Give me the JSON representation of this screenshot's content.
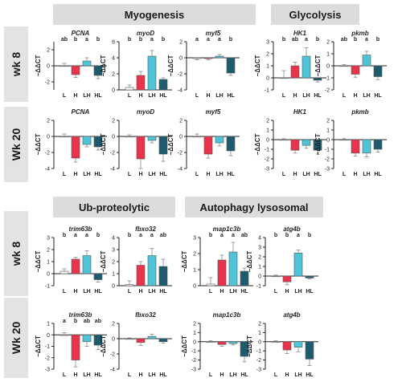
{
  "sections": [
    {
      "title": "Myogenesis"
    },
    {
      "title": "Glycolysis"
    },
    {
      "title": "Ub-proteolytic"
    },
    {
      "title": "Autophagy lysosomal"
    }
  ],
  "row_labels": [
    "wk 8",
    "Wk 20",
    "wk 8",
    "Wk 20"
  ],
  "colors": {
    "L": "#ffffff",
    "H": "#e8334a",
    "LH": "#4fc3d8",
    "HL": "#1e5b6e",
    "header_bg": "#dcdcdc"
  },
  "chart_data": [
    {
      "type": "bar",
      "gene": "PCNA",
      "row": "wk 8",
      "categories": [
        "L",
        "H",
        "LH",
        "HL"
      ],
      "values": [
        0,
        -1.1,
        0.6,
        -1.2
      ],
      "errors": [
        0.3,
        0.35,
        0.4,
        0.4
      ],
      "significance": [
        "ab",
        "b",
        "a",
        "b"
      ],
      "ylim": [
        -3,
        3
      ],
      "yticks": [
        -2,
        0,
        2
      ],
      "ylabel": "−ΔΔCT"
    },
    {
      "type": "bar",
      "gene": "myoD",
      "row": "wk 8",
      "categories": [
        "L",
        "H",
        "LH",
        "HL"
      ],
      "values": [
        0.3,
        1.8,
        4.2,
        1.3
      ],
      "errors": [
        0.3,
        0.5,
        0.7,
        0.2
      ],
      "significance": [
        "b",
        "b",
        "a",
        "b"
      ],
      "ylim": [
        0,
        6
      ],
      "yticks": [
        0,
        2,
        4,
        6
      ],
      "ylabel": "−ΔΔCT"
    },
    {
      "type": "bar",
      "gene": "myf5",
      "row": "wk 8",
      "categories": [
        "L",
        "H",
        "LH",
        "HL"
      ],
      "values": [
        -0.1,
        -0.1,
        0.2,
        -1.9
      ],
      "errors": [
        0.15,
        0.15,
        0.2,
        0.3
      ],
      "significance": [
        "a",
        "a",
        "a",
        "b"
      ],
      "ylim": [
        -4,
        2
      ],
      "yticks": [
        -4,
        -2,
        0,
        2
      ],
      "ylabel": "−ΔΔCT"
    },
    {
      "type": "bar",
      "gene": "HK1",
      "row": "wk 8",
      "categories": [
        "L",
        "H",
        "LH",
        "HL"
      ],
      "values": [
        0,
        1,
        1.8,
        -0.2
      ],
      "errors": [
        0.6,
        0.3,
        0.7,
        0.15
      ],
      "significance": [
        "b",
        "ab",
        "a",
        "b"
      ],
      "ylim": [
        -1,
        3
      ],
      "yticks": [
        -1,
        0,
        1,
        2,
        3
      ],
      "ylabel": "−ΔΔCT"
    },
    {
      "type": "bar",
      "gene": "pkmb",
      "row": "wk 8",
      "categories": [
        "L",
        "H",
        "LH",
        "HL"
      ],
      "values": [
        0,
        -0.7,
        0.9,
        -0.9
      ],
      "errors": [
        0.1,
        0.25,
        0.3,
        0.25
      ],
      "significance": [
        "ab",
        "b",
        "a",
        "b"
      ],
      "ylim": [
        -2,
        2
      ],
      "yticks": [
        -2,
        -1,
        0,
        1,
        2
      ],
      "ylabel": "−ΔΔCT"
    },
    {
      "type": "bar",
      "gene": "PCNA",
      "row": "Wk 20",
      "categories": [
        "L",
        "H",
        "LH",
        "HL"
      ],
      "values": [
        0,
        -2.7,
        -1,
        -1.3
      ],
      "errors": [
        0.3,
        0.5,
        0.3,
        0.4
      ],
      "significance": [],
      "ylim": [
        -4,
        2
      ],
      "yticks": [
        -4,
        -2,
        0,
        2
      ],
      "ylabel": "−ΔΔCT"
    },
    {
      "type": "bar",
      "gene": "myoD",
      "row": "Wk 20",
      "categories": [
        "L",
        "H",
        "LH",
        "HL"
      ],
      "values": [
        0,
        -2.8,
        -0.5,
        -2.2
      ],
      "errors": [
        0.2,
        1.2,
        0.3,
        0.9
      ],
      "significance": [],
      "ylim": [
        -4,
        2
      ],
      "yticks": [
        -4,
        -2,
        0,
        2
      ],
      "ylabel": "−ΔΔCT"
    },
    {
      "type": "bar",
      "gene": "myf5",
      "row": "Wk 20",
      "categories": [
        "L",
        "H",
        "LH",
        "HL"
      ],
      "values": [
        0,
        -2.2,
        -0.8,
        -1.8
      ],
      "errors": [
        0.3,
        0.5,
        0.4,
        0.6
      ],
      "significance": [],
      "ylim": [
        -4,
        2
      ],
      "yticks": [
        -4,
        -2,
        0,
        2
      ],
      "ylabel": "−ΔΔCT"
    },
    {
      "type": "bar",
      "gene": "HK1",
      "row": "Wk 20",
      "categories": [
        "L",
        "H",
        "LH",
        "HL"
      ],
      "values": [
        0,
        -1.1,
        -0.6,
        -1.1
      ],
      "errors": [
        0.1,
        0.3,
        0.3,
        0.4
      ],
      "significance": [],
      "ylim": [
        -3,
        2
      ],
      "yticks": [
        -3,
        -2,
        -1,
        0,
        1,
        2
      ],
      "ylabel": "−ΔΔCT"
    },
    {
      "type": "bar",
      "gene": "pkmb",
      "row": "Wk 20",
      "categories": [
        "L",
        "H",
        "LH",
        "HL"
      ],
      "values": [
        0,
        -1.4,
        -1.4,
        -1
      ],
      "errors": [
        0.1,
        0.3,
        0.4,
        0.3
      ],
      "significance": [],
      "ylim": [
        -3,
        2
      ],
      "yticks": [
        -3,
        -2,
        -1,
        0,
        1,
        2
      ],
      "ylabel": "−ΔΔCT"
    },
    {
      "type": "bar",
      "gene": "trim63b",
      "row": "wk 8",
      "categories": [
        "L",
        "H",
        "LH",
        "HL"
      ],
      "values": [
        0.2,
        1.2,
        1.5,
        -0.5
      ],
      "errors": [
        0.2,
        0.15,
        0.4,
        0.2
      ],
      "significance": [
        "b",
        "a",
        "a",
        "b"
      ],
      "ylim": [
        -1,
        3
      ],
      "yticks": [
        -1,
        0,
        1,
        2,
        3
      ],
      "ylabel": "−ΔΔCT"
    },
    {
      "type": "bar",
      "gene": "fbxo32",
      "row": "wk 8",
      "categories": [
        "L",
        "H",
        "LH",
        "HL"
      ],
      "values": [
        0.1,
        1.7,
        2.5,
        1.6
      ],
      "errors": [
        0.3,
        0.3,
        0.6,
        0.6
      ],
      "significance": [
        "b",
        "a",
        "a",
        "ab"
      ],
      "ylim": [
        0,
        4
      ],
      "yticks": [
        0,
        1,
        2,
        3,
        4
      ],
      "ylabel": "−ΔΔCT"
    },
    {
      "type": "bar",
      "gene": "map1c3b",
      "row": "wk 8",
      "categories": [
        "L",
        "H",
        "LH",
        "HL"
      ],
      "values": [
        0.1,
        1.6,
        2.1,
        0.9
      ],
      "errors": [
        0.4,
        0.3,
        0.6,
        0.2
      ],
      "significance": [
        "b",
        "a",
        "a",
        "ab"
      ],
      "ylim": [
        0,
        3
      ],
      "yticks": [
        0,
        1,
        2,
        3
      ],
      "ylabel": "−ΔΔCT"
    },
    {
      "type": "bar",
      "gene": "atg4b",
      "row": "wk 8",
      "categories": [
        "L",
        "H",
        "LH",
        "HL"
      ],
      "values": [
        0,
        -0.6,
        2.4,
        -0.2
      ],
      "errors": [
        0.1,
        0.3,
        0.3,
        0.1
      ],
      "significance": [
        "b",
        "b",
        "a",
        "b"
      ],
      "ylim": [
        -1,
        4
      ],
      "yticks": [
        -1,
        0,
        1,
        2,
        3,
        4
      ],
      "ylabel": "−ΔΔCT"
    },
    {
      "type": "bar",
      "gene": "trim63b",
      "row": "Wk 20",
      "categories": [
        "L",
        "H",
        "LH",
        "HL"
      ],
      "values": [
        0,
        -2.2,
        -0.6,
        -0.9
      ],
      "errors": [
        0.2,
        0.6,
        0.4,
        0.4
      ],
      "significance": [
        "a",
        "b",
        "ab",
        "ab"
      ],
      "ylim": [
        -3,
        1
      ],
      "yticks": [
        -3,
        -2,
        -1,
        0,
        1
      ],
      "ylabel": "−ΔΔCT"
    },
    {
      "type": "bar",
      "gene": "fbxo32",
      "row": "Wk 20",
      "categories": [
        "L",
        "H",
        "LH",
        "HL"
      ],
      "values": [
        0,
        -0.5,
        0.3,
        -0.4
      ],
      "errors": [
        0.1,
        0.4,
        0.3,
        0.2
      ],
      "significance": [],
      "ylim": [
        -4,
        2
      ],
      "yticks": [
        -4,
        -2,
        0,
        2
      ],
      "ylabel": "−ΔΔCT"
    },
    {
      "type": "bar",
      "gene": "map1c3b",
      "row": "Wk 20",
      "categories": [
        "L",
        "H",
        "LH",
        "HL"
      ],
      "values": [
        0,
        -0.3,
        -0.2,
        -1.6
      ],
      "errors": [
        0.1,
        0.2,
        0.15,
        0.6
      ],
      "significance": [],
      "ylim": [
        -3,
        2
      ],
      "yticks": [
        -3,
        -2,
        -1,
        0,
        1,
        2
      ],
      "ylabel": "−ΔΔCT"
    },
    {
      "type": "bar",
      "gene": "atg4b",
      "row": "Wk 20",
      "categories": [
        "L",
        "H",
        "LH",
        "HL"
      ],
      "values": [
        0,
        -0.9,
        -0.6,
        -1.9
      ],
      "errors": [
        0.1,
        0.4,
        0.5,
        0.7
      ],
      "significance": [],
      "ylim": [
        -3,
        2
      ],
      "yticks": [
        -3,
        -2,
        -1,
        0,
        1,
        2
      ],
      "ylabel": "−ΔΔCT"
    }
  ]
}
